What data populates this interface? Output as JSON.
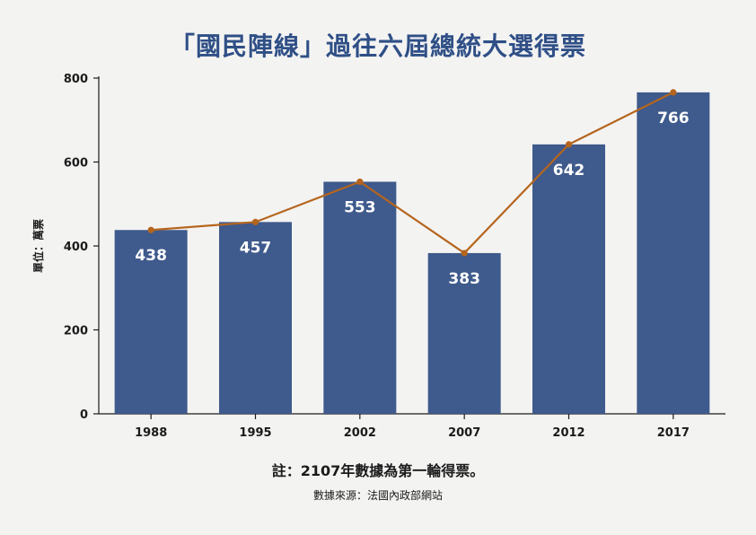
{
  "chart_data": {
    "type": "bar",
    "title": "「國民陣線」過往六屆總統大選得票",
    "ylabel": "單位：萬票",
    "xlabel": "",
    "categories": [
      "1988",
      "1995",
      "2002",
      "2007",
      "2012",
      "2017"
    ],
    "series": [
      {
        "values": [
          438,
          457,
          553,
          383,
          642,
          766
        ]
      }
    ],
    "overlay_line": true,
    "ylim": [
      0,
      800
    ],
    "yticks": [
      0,
      200,
      400,
      600,
      800
    ],
    "grid": false,
    "legend": "none",
    "bar_color": "#3f5a8c",
    "line_color": "#b5651d",
    "label_color": "#ffffff"
  },
  "footnote": "註：2107年數據為第一輪得票。",
  "source": "數據來源：法國內政部網站"
}
